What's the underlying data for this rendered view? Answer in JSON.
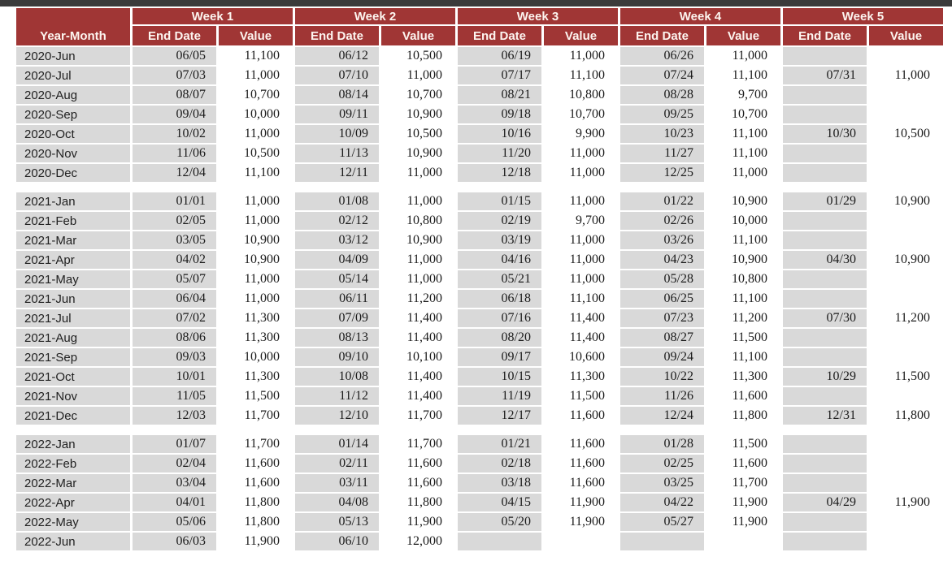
{
  "colors": {
    "header_bg": "#a03635",
    "header_text": "#fdf5f0",
    "cell_gray": "#d9d9d9",
    "top_bar": "#3b3b3b",
    "data_text": "#1b1b1b"
  },
  "chart_data": {
    "type": "table",
    "corner_header": "Year-Month",
    "week_headers": [
      "Week 1",
      "Week 2",
      "Week 3",
      "Week 4",
      "Week 5"
    ],
    "sub_headers": [
      "End Date",
      "Value"
    ],
    "layout": {
      "grid": "off",
      "header_rows": 2,
      "weeks_per_row": 5,
      "columns_per_week": [
        "End Date",
        "Value"
      ]
    },
    "sections": [
      {
        "year": "2020",
        "rows": [
          {
            "month": "2020-Jun",
            "weeks": [
              [
                "06/05",
                "11,100"
              ],
              [
                "06/12",
                "10,500"
              ],
              [
                "06/19",
                "11,000"
              ],
              [
                "06/26",
                "11,000"
              ],
              [
                "",
                ""
              ]
            ]
          },
          {
            "month": "2020-Jul",
            "weeks": [
              [
                "07/03",
                "11,000"
              ],
              [
                "07/10",
                "11,000"
              ],
              [
                "07/17",
                "11,100"
              ],
              [
                "07/24",
                "11,100"
              ],
              [
                "07/31",
                "11,000"
              ]
            ]
          },
          {
            "month": "2020-Aug",
            "weeks": [
              [
                "08/07",
                "10,700"
              ],
              [
                "08/14",
                "10,700"
              ],
              [
                "08/21",
                "10,800"
              ],
              [
                "08/28",
                "9,700"
              ],
              [
                "",
                ""
              ]
            ]
          },
          {
            "month": "2020-Sep",
            "weeks": [
              [
                "09/04",
                "10,000"
              ],
              [
                "09/11",
                "10,900"
              ],
              [
                "09/18",
                "10,700"
              ],
              [
                "09/25",
                "10,700"
              ],
              [
                "",
                ""
              ]
            ]
          },
          {
            "month": "2020-Oct",
            "weeks": [
              [
                "10/02",
                "11,000"
              ],
              [
                "10/09",
                "10,500"
              ],
              [
                "10/16",
                "9,900"
              ],
              [
                "10/23",
                "11,100"
              ],
              [
                "10/30",
                "10,500"
              ]
            ]
          },
          {
            "month": "2020-Nov",
            "weeks": [
              [
                "11/06",
                "10,500"
              ],
              [
                "11/13",
                "10,900"
              ],
              [
                "11/20",
                "11,000"
              ],
              [
                "11/27",
                "11,100"
              ],
              [
                "",
                ""
              ]
            ]
          },
          {
            "month": "2020-Dec",
            "weeks": [
              [
                "12/04",
                "11,100"
              ],
              [
                "12/11",
                "11,000"
              ],
              [
                "12/18",
                "11,000"
              ],
              [
                "12/25",
                "11,000"
              ],
              [
                "",
                ""
              ]
            ]
          }
        ]
      },
      {
        "year": "2021",
        "rows": [
          {
            "month": "2021-Jan",
            "weeks": [
              [
                "01/01",
                "11,000"
              ],
              [
                "01/08",
                "11,000"
              ],
              [
                "01/15",
                "11,000"
              ],
              [
                "01/22",
                "10,900"
              ],
              [
                "01/29",
                "10,900"
              ]
            ]
          },
          {
            "month": "2021-Feb",
            "weeks": [
              [
                "02/05",
                "11,000"
              ],
              [
                "02/12",
                "10,800"
              ],
              [
                "02/19",
                "9,700"
              ],
              [
                "02/26",
                "10,000"
              ],
              [
                "",
                ""
              ]
            ]
          },
          {
            "month": "2021-Mar",
            "weeks": [
              [
                "03/05",
                "10,900"
              ],
              [
                "03/12",
                "10,900"
              ],
              [
                "03/19",
                "11,000"
              ],
              [
                "03/26",
                "11,100"
              ],
              [
                "",
                ""
              ]
            ]
          },
          {
            "month": "2021-Apr",
            "weeks": [
              [
                "04/02",
                "10,900"
              ],
              [
                "04/09",
                "11,000"
              ],
              [
                "04/16",
                "11,000"
              ],
              [
                "04/23",
                "10,900"
              ],
              [
                "04/30",
                "10,900"
              ]
            ]
          },
          {
            "month": "2021-May",
            "weeks": [
              [
                "05/07",
                "11,000"
              ],
              [
                "05/14",
                "11,000"
              ],
              [
                "05/21",
                "11,000"
              ],
              [
                "05/28",
                "10,800"
              ],
              [
                "",
                ""
              ]
            ]
          },
          {
            "month": "2021-Jun",
            "weeks": [
              [
                "06/04",
                "11,000"
              ],
              [
                "06/11",
                "11,200"
              ],
              [
                "06/18",
                "11,100"
              ],
              [
                "06/25",
                "11,100"
              ],
              [
                "",
                ""
              ]
            ]
          },
          {
            "month": "2021-Jul",
            "weeks": [
              [
                "07/02",
                "11,300"
              ],
              [
                "07/09",
                "11,400"
              ],
              [
                "07/16",
                "11,400"
              ],
              [
                "07/23",
                "11,200"
              ],
              [
                "07/30",
                "11,200"
              ]
            ]
          },
          {
            "month": "2021-Aug",
            "weeks": [
              [
                "08/06",
                "11,300"
              ],
              [
                "08/13",
                "11,400"
              ],
              [
                "08/20",
                "11,400"
              ],
              [
                "08/27",
                "11,500"
              ],
              [
                "",
                ""
              ]
            ]
          },
          {
            "month": "2021-Sep",
            "weeks": [
              [
                "09/03",
                "10,000"
              ],
              [
                "09/10",
                "10,100"
              ],
              [
                "09/17",
                "10,600"
              ],
              [
                "09/24",
                "11,100"
              ],
              [
                "",
                ""
              ]
            ]
          },
          {
            "month": "2021-Oct",
            "weeks": [
              [
                "10/01",
                "11,300"
              ],
              [
                "10/08",
                "11,400"
              ],
              [
                "10/15",
                "11,300"
              ],
              [
                "10/22",
                "11,300"
              ],
              [
                "10/29",
                "11,500"
              ]
            ]
          },
          {
            "month": "2021-Nov",
            "weeks": [
              [
                "11/05",
                "11,500"
              ],
              [
                "11/12",
                "11,400"
              ],
              [
                "11/19",
                "11,500"
              ],
              [
                "11/26",
                "11,600"
              ],
              [
                "",
                ""
              ]
            ]
          },
          {
            "month": "2021-Dec",
            "weeks": [
              [
                "12/03",
                "11,700"
              ],
              [
                "12/10",
                "11,700"
              ],
              [
                "12/17",
                "11,600"
              ],
              [
                "12/24",
                "11,800"
              ],
              [
                "12/31",
                "11,800"
              ]
            ]
          }
        ]
      },
      {
        "year": "2022",
        "rows": [
          {
            "month": "2022-Jan",
            "weeks": [
              [
                "01/07",
                "11,700"
              ],
              [
                "01/14",
                "11,700"
              ],
              [
                "01/21",
                "11,600"
              ],
              [
                "01/28",
                "11,500"
              ],
              [
                "",
                ""
              ]
            ]
          },
          {
            "month": "2022-Feb",
            "weeks": [
              [
                "02/04",
                "11,600"
              ],
              [
                "02/11",
                "11,600"
              ],
              [
                "02/18",
                "11,600"
              ],
              [
                "02/25",
                "11,600"
              ],
              [
                "",
                ""
              ]
            ]
          },
          {
            "month": "2022-Mar",
            "weeks": [
              [
                "03/04",
                "11,600"
              ],
              [
                "03/11",
                "11,600"
              ],
              [
                "03/18",
                "11,600"
              ],
              [
                "03/25",
                "11,700"
              ],
              [
                "",
                ""
              ]
            ]
          },
          {
            "month": "2022-Apr",
            "weeks": [
              [
                "04/01",
                "11,800"
              ],
              [
                "04/08",
                "11,800"
              ],
              [
                "04/15",
                "11,900"
              ],
              [
                "04/22",
                "11,900"
              ],
              [
                "04/29",
                "11,900"
              ]
            ]
          },
          {
            "month": "2022-May",
            "weeks": [
              [
                "05/06",
                "11,800"
              ],
              [
                "05/13",
                "11,900"
              ],
              [
                "05/20",
                "11,900"
              ],
              [
                "05/27",
                "11,900"
              ],
              [
                "",
                ""
              ]
            ]
          },
          {
            "month": "2022-Jun",
            "weeks": [
              [
                "06/03",
                "11,900"
              ],
              [
                "06/10",
                "12,000"
              ],
              [
                "",
                ""
              ],
              [
                "",
                ""
              ],
              [
                "",
                ""
              ]
            ]
          }
        ]
      }
    ]
  }
}
